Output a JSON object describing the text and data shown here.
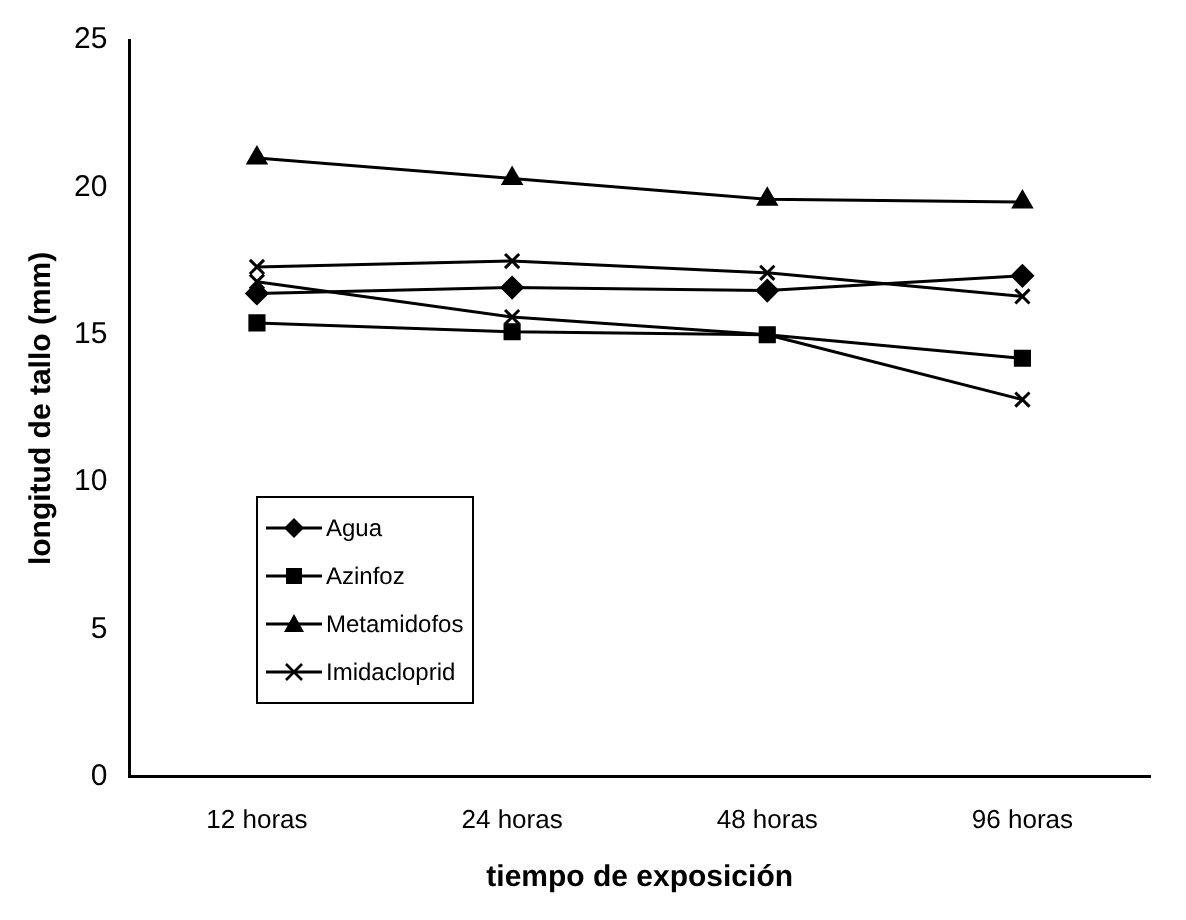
{
  "chart_data": {
    "type": "line",
    "xlabel": "tiempo de exposición",
    "ylabel": "longitud de tallo (mm)",
    "categories": [
      "12 horas",
      "24 horas",
      "48 horas",
      "96 horas"
    ],
    "series": [
      {
        "name": "Agua",
        "color": "#000000",
        "marker": "diamond",
        "values": [
          16.4,
          16.6,
          16.5,
          17.0
        ]
      },
      {
        "name": "Azinfoz",
        "color": "#000000",
        "marker": "square",
        "values": [
          15.4,
          15.1,
          15.0,
          14.2
        ]
      },
      {
        "name": "Metamidofos",
        "color": "#000000",
        "marker": "triangle",
        "values": [
          21.0,
          20.3,
          19.6,
          19.5
        ]
      },
      {
        "color": "#000000",
        "marker": "cross",
        "values": [
          17.3,
          17.5,
          17.1,
          16.3
        ]
      },
      {
        "name": "Imidacloprid",
        "color": "#000000",
        "marker": "cross",
        "values": [
          16.8,
          15.6,
          15.0,
          12.8
        ]
      }
    ],
    "ylim": [
      0,
      25
    ],
    "yticks": [
      0,
      5,
      10,
      15,
      20,
      25
    ],
    "grid": false,
    "legend": "left",
    "line_style": "solid"
  }
}
